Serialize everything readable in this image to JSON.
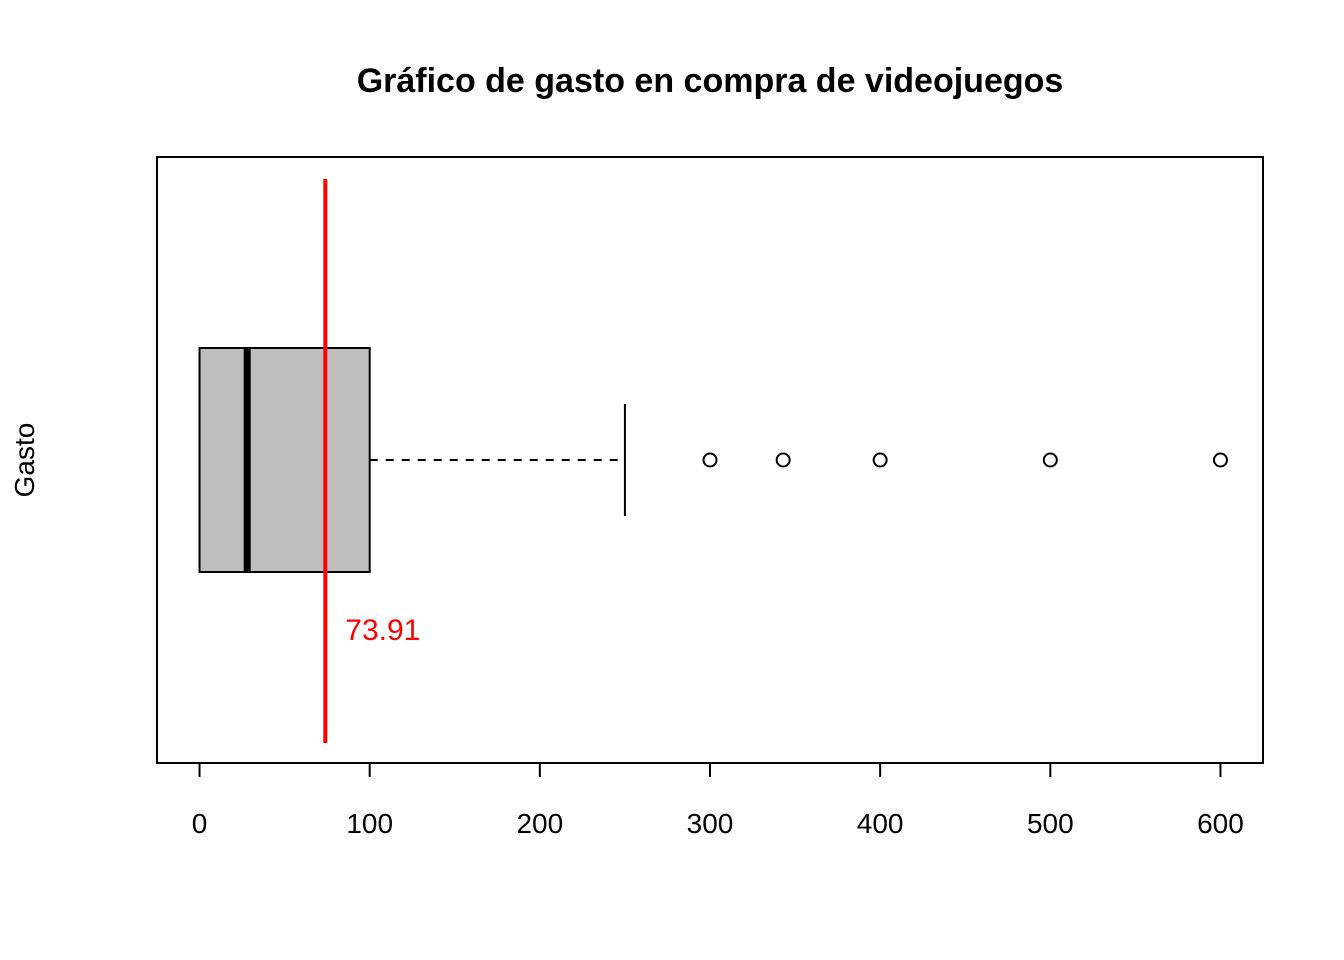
{
  "chart_data": {
    "type": "boxplot",
    "orientation": "horizontal",
    "title": "Gráfico de gasto en compra de videojuegos",
    "xlabel": "",
    "ylabel": "Gasto",
    "xlim": [
      -25,
      625
    ],
    "xticks": [
      0,
      100,
      200,
      300,
      400,
      500,
      600
    ],
    "xtick_labels": [
      "0",
      "100",
      "200",
      "300",
      "400",
      "500",
      "600"
    ],
    "grid": false,
    "box": {
      "whisker_low": 0,
      "q1": 0,
      "median": 28,
      "q3": 100,
      "whisker_high": 250,
      "outliers": [
        300,
        343,
        400,
        500,
        600
      ]
    },
    "mean_line": {
      "value": 73.91,
      "label": "73.91",
      "color": "#ff0000"
    },
    "colors": {
      "box_fill": "#bebebe",
      "stroke": "#000000",
      "mean": "#ff0000"
    }
  }
}
